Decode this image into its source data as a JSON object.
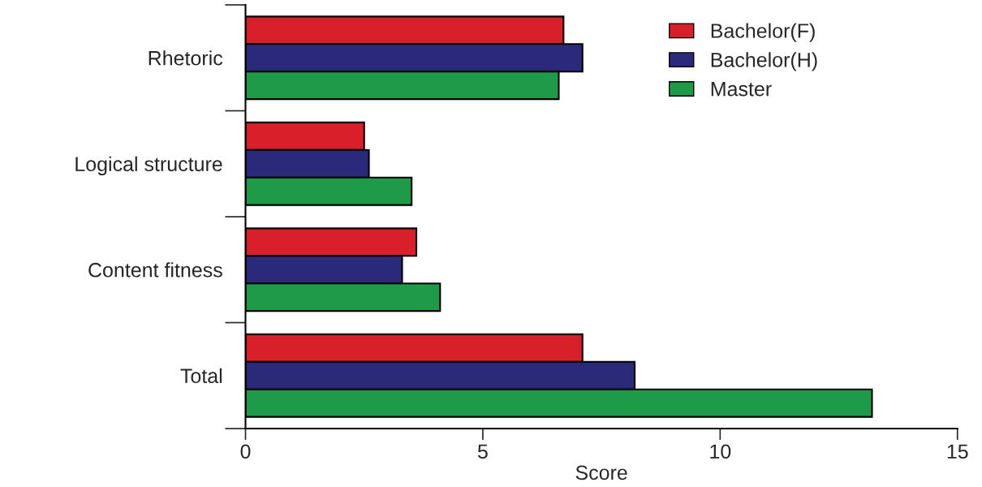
{
  "chart_data": {
    "type": "bar",
    "orientation": "horizontal",
    "xlabel": "Score",
    "categories": [
      "Rhetoric",
      "Logical structure",
      "Content fitness",
      "Total"
    ],
    "series": [
      {
        "name": "Bachelor(F)",
        "color": "#d9202a",
        "values": [
          6.7,
          2.5,
          3.6,
          7.1
        ]
      },
      {
        "name": "Bachelor(H)",
        "color": "#2b2a7a",
        "values": [
          7.1,
          2.6,
          3.3,
          8.2
        ]
      },
      {
        "name": "Master",
        "color": "#1f9a48",
        "values": [
          6.6,
          3.5,
          4.1,
          13.2
        ]
      }
    ],
    "xlim": [
      0,
      15
    ],
    "xticks": [
      0,
      5,
      10,
      15
    ],
    "grid": false,
    "legend": "top right"
  }
}
